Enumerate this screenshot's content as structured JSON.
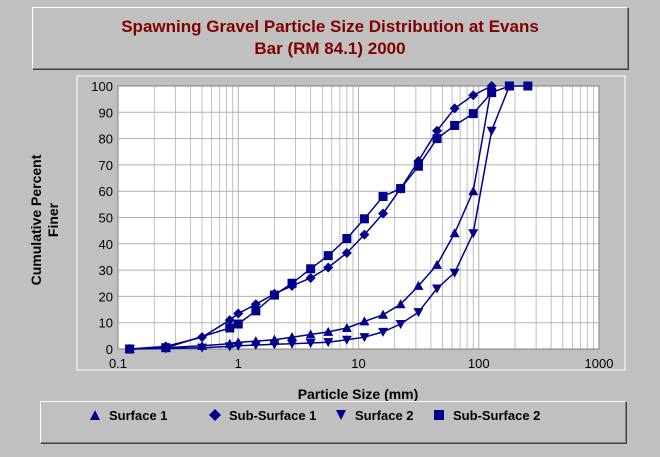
{
  "chart_data": {
    "type": "scatter",
    "title_line1": "Spawning Gravel Particle Size Distribution at Evans",
    "title_line2": "Bar (RM 84.1) 2000",
    "xlabel": "Particle Size (mm)",
    "ylabel_line1": "Cumulative Percent",
    "ylabel_line2": "Finer",
    "x_scale": "log",
    "xlim": [
      0.1,
      1000
    ],
    "ylim": [
      0,
      100
    ],
    "x_ticks": [
      "0.1",
      "1",
      "10",
      "100",
      "1000"
    ],
    "y_ticks": [
      "0",
      "10",
      "20",
      "30",
      "40",
      "50",
      "60",
      "70",
      "80",
      "90",
      "100"
    ],
    "grid": true,
    "legend_position": "bottom",
    "series": [
      {
        "name": "Surface 1",
        "marker": "triangle-up",
        "color": "#00008b",
        "x": [
          0.125,
          0.25,
          0.5,
          0.85,
          1.0,
          1.4,
          2.0,
          2.8,
          4.0,
          5.6,
          8.0,
          11.2,
          16.0,
          22.4,
          31.5,
          45.0,
          63.0,
          90.0,
          128.0
        ],
        "y": [
          0,
          0.5,
          1.2,
          2.0,
          2.5,
          3.0,
          3.5,
          4.5,
          5.5,
          6.5,
          8.0,
          10.5,
          13.0,
          17.0,
          24.0,
          32.0,
          44.0,
          60.0,
          100.0
        ]
      },
      {
        "name": "Sub-Surface 1",
        "marker": "diamond",
        "color": "#00008b",
        "x": [
          0.125,
          0.25,
          0.5,
          0.85,
          1.0,
          1.4,
          2.0,
          2.8,
          4.0,
          5.6,
          8.0,
          11.2,
          16.0,
          22.4,
          31.5,
          45.0,
          63.0,
          90.0,
          128.0
        ],
        "y": [
          0,
          1.0,
          4.5,
          11.0,
          13.5,
          17.0,
          21.0,
          24.0,
          27.0,
          31.0,
          36.5,
          43.5,
          51.5,
          61.0,
          71.5,
          83.0,
          91.5,
          96.5,
          100.0
        ]
      },
      {
        "name": "Surface 2",
        "marker": "triangle-down",
        "color": "#00008b",
        "x": [
          0.125,
          0.25,
          0.5,
          0.85,
          1.0,
          1.4,
          2.0,
          2.8,
          4.0,
          5.6,
          8.0,
          11.2,
          16.0,
          22.4,
          31.5,
          45.0,
          63.0,
          90.0,
          128.0,
          180.0
        ],
        "y": [
          0,
          0.2,
          0.5,
          1.0,
          1.2,
          1.5,
          1.8,
          2.0,
          2.3,
          2.6,
          3.5,
          4.5,
          6.5,
          9.5,
          14.0,
          23.0,
          29.0,
          44.0,
          83.0,
          100.0
        ]
      },
      {
        "name": "Sub-Surface 2",
        "marker": "square",
        "color": "#00008b",
        "x": [
          0.125,
          0.25,
          0.85,
          1.0,
          1.4,
          2.0,
          2.8,
          4.0,
          5.6,
          8.0,
          11.2,
          16.0,
          22.4,
          31.5,
          45.0,
          63.0,
          90.0,
          128.0,
          180.0,
          256.0
        ],
        "y": [
          0,
          0.5,
          8.0,
          9.5,
          14.5,
          20.5,
          25.0,
          30.5,
          35.5,
          42.0,
          49.5,
          58.0,
          61.0,
          69.5,
          80.0,
          85.0,
          89.5,
          97.5,
          100.0,
          100.0
        ]
      }
    ]
  },
  "legend": {
    "items": [
      "Surface 1",
      "Sub-Surface 1",
      "Surface 2",
      "Sub-Surface 2"
    ]
  }
}
